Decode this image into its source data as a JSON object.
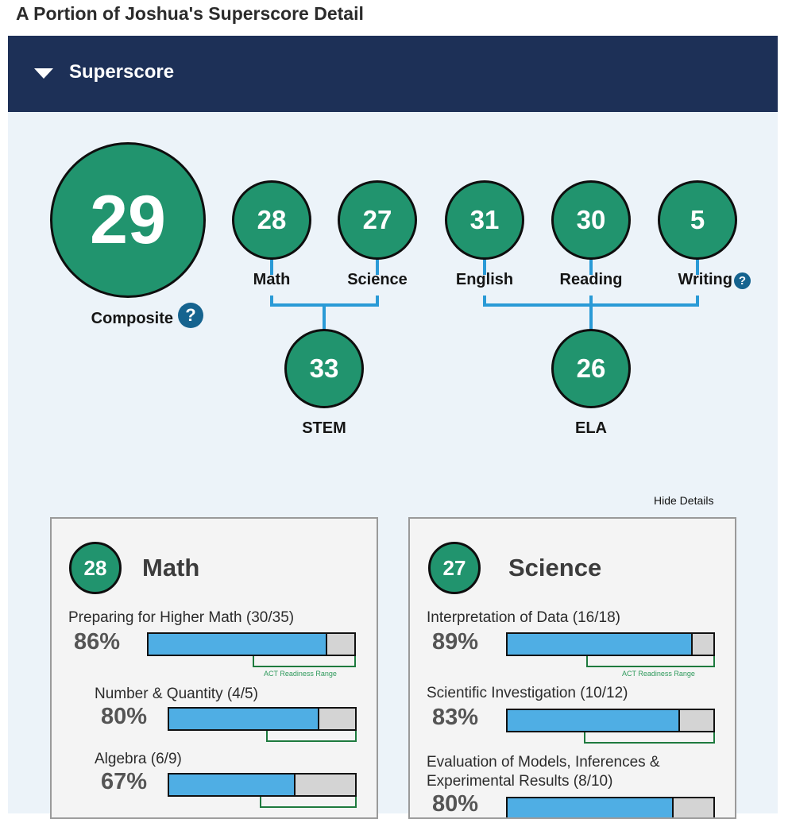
{
  "title": "A Portion of Joshua's Superscore Detail",
  "header": {
    "label": "Superscore",
    "toggle_icon": "caret-down-icon"
  },
  "composite": {
    "score": "29",
    "label": "Composite"
  },
  "subjects": [
    {
      "score": "28",
      "label": "Math"
    },
    {
      "score": "27",
      "label": "Science"
    },
    {
      "score": "31",
      "label": "English"
    },
    {
      "score": "30",
      "label": "Reading"
    },
    {
      "score": "5",
      "label": "Writing"
    }
  ],
  "groups": [
    {
      "score": "33",
      "label": "STEM"
    },
    {
      "score": "26",
      "label": "ELA"
    }
  ],
  "help_icon": "?",
  "hide_details": "Hide Details",
  "colors": {
    "header": "#1d3057",
    "circle": "#21946e",
    "bar": "#4faee4",
    "range": "#1e7a3e",
    "help": "#15638f"
  },
  "cards": [
    {
      "score": "28",
      "title": "Math",
      "categories": [
        {
          "label": "Preparing for Higher Math (30/35)",
          "percent": "86%",
          "fill": 0.86,
          "range_note": "ACT Readiness Range"
        },
        {
          "label": "Number & Quantity (4/5)",
          "percent": "80%",
          "fill": 0.8
        },
        {
          "label": "Algebra (6/9)",
          "percent": "67%",
          "fill": 0.67
        }
      ]
    },
    {
      "score": "27",
      "title": "Science",
      "categories": [
        {
          "label": "Interpretation of Data (16/18)",
          "percent": "89%",
          "fill": 0.89,
          "range_note": "ACT Readiness Range"
        },
        {
          "label": "Scientific Investigation (10/12)",
          "percent": "83%",
          "fill": 0.83
        },
        {
          "label": "Evaluation of Models, Inferences &",
          "label2": "Experimental Results (8/10)",
          "percent": "80%",
          "fill": 0.8
        }
      ]
    }
  ]
}
